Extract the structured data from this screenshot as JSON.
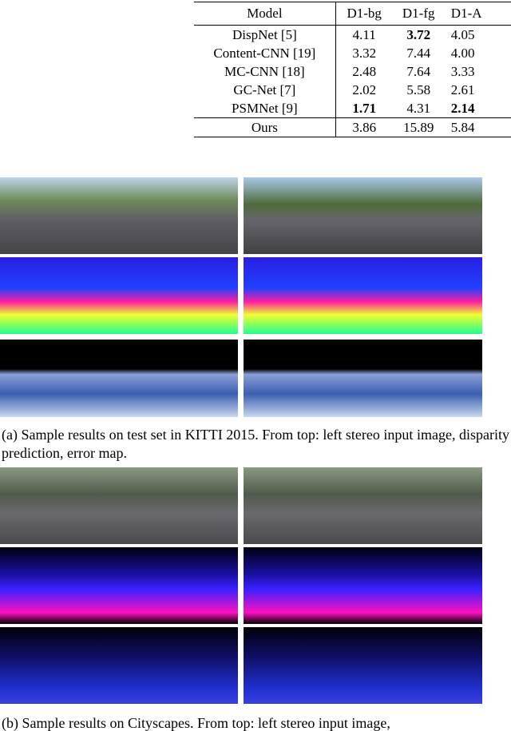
{
  "table": {
    "header": [
      "Model",
      "D1-bg",
      "D1-fg",
      "D1-A"
    ],
    "rows": [
      [
        "DispNet [5]",
        "4.11",
        "3.72",
        "4.05"
      ],
      [
        "Content-CNN [19]",
        "3.32",
        "7.44",
        "4.00"
      ],
      [
        "MC-CNN [18]",
        "2.48",
        "7.64",
        "3.33"
      ],
      [
        "GC-Net [7]",
        "2.02",
        "5.58",
        "2.61"
      ],
      [
        "PSMNet [9]",
        "1.71",
        "4.31",
        "2.14"
      ],
      [
        "Ours",
        "3.86",
        "15.89",
        "5.84"
      ]
    ]
  },
  "figure": {
    "caption_a": "(a) Sample results on test set in KITTI 2015. From top: left stereo input image, disparity prediction, error map.",
    "caption_b": "(b) Sample results on Cityscapes. From top: left stereo input image,"
  }
}
